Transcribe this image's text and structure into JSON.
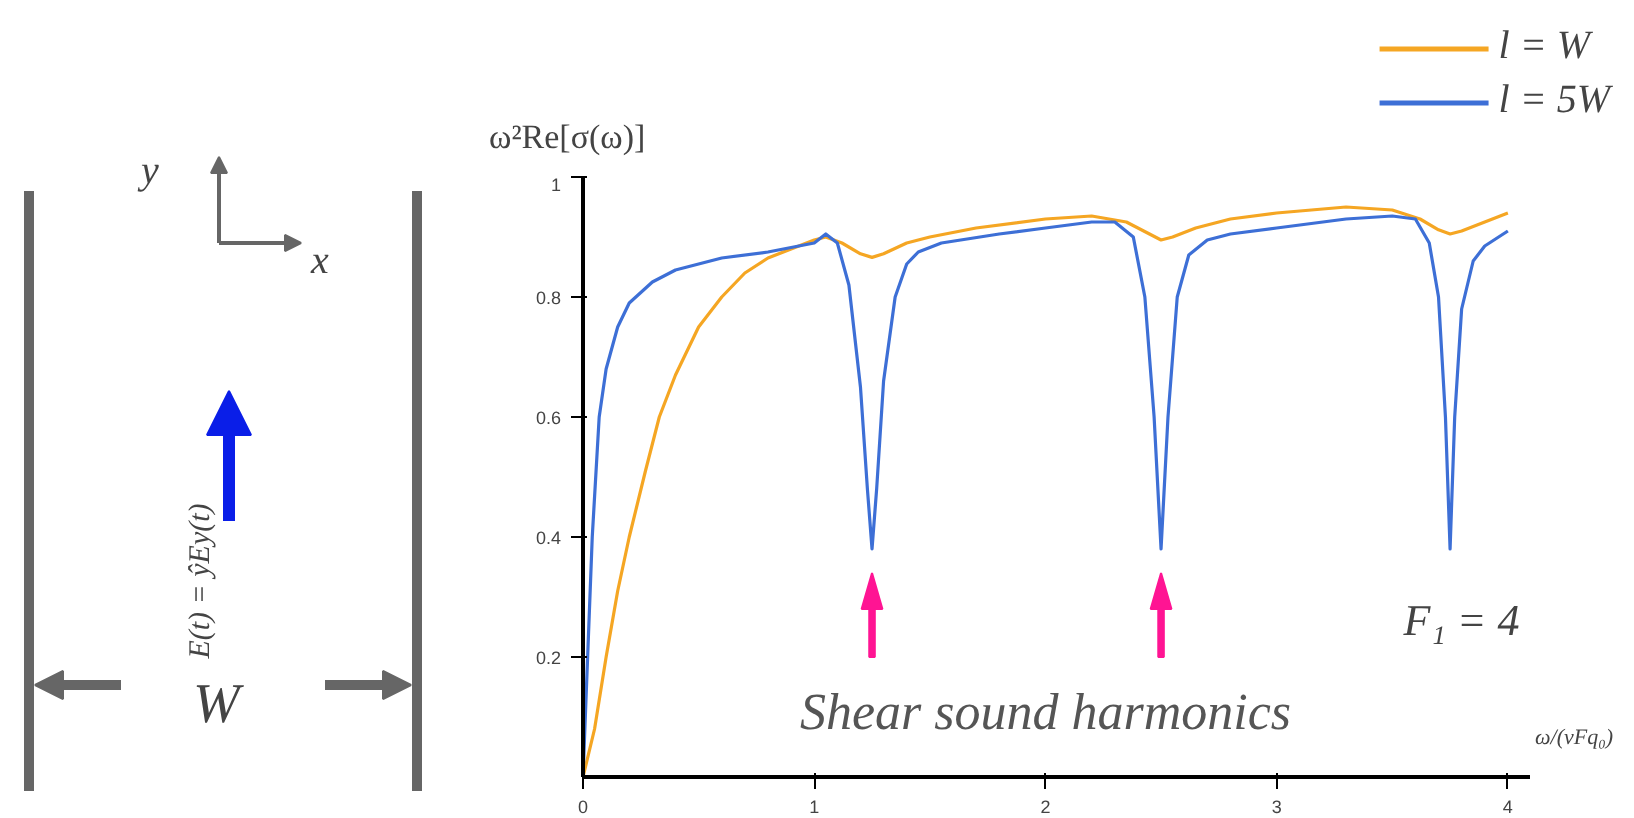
{
  "chart_data": {
    "type": "line",
    "xlabel": "ω/(vFq₀)",
    "ylabel": "ω²Re[σ(ω)]",
    "xlim": [
      0,
      4.1
    ],
    "ylim": [
      0,
      1.0
    ],
    "xticks": [
      0,
      1,
      2,
      3,
      4
    ],
    "yticks": [
      0.2,
      0.4,
      0.6,
      0.8,
      1.0
    ],
    "grid": false,
    "legend": "top right",
    "line_style": "solid",
    "series": [
      {
        "name": "l = W",
        "color": "#f5a623",
        "x": [
          0,
          0.05,
          0.1,
          0.15,
          0.2,
          0.27,
          0.33,
          0.4,
          0.5,
          0.6,
          0.7,
          0.8,
          0.9,
          1.0,
          1.05,
          1.12,
          1.2,
          1.25,
          1.3,
          1.4,
          1.5,
          1.7,
          2.0,
          2.2,
          2.35,
          2.45,
          2.5,
          2.55,
          2.65,
          2.8,
          3.0,
          3.3,
          3.5,
          3.62,
          3.7,
          3.75,
          3.8,
          3.9,
          4.0
        ],
        "values": [
          0,
          0.08,
          0.2,
          0.31,
          0.4,
          0.51,
          0.6,
          0.67,
          0.75,
          0.8,
          0.84,
          0.865,
          0.88,
          0.895,
          0.9,
          0.89,
          0.872,
          0.866,
          0.872,
          0.89,
          0.9,
          0.915,
          0.93,
          0.935,
          0.925,
          0.905,
          0.895,
          0.9,
          0.915,
          0.93,
          0.94,
          0.95,
          0.945,
          0.93,
          0.912,
          0.905,
          0.91,
          0.925,
          0.94
        ]
      },
      {
        "name": "l = 5W",
        "color": "#3d6fd6",
        "x": [
          0,
          0.02,
          0.04,
          0.07,
          0.1,
          0.15,
          0.2,
          0.3,
          0.4,
          0.6,
          0.8,
          1.0,
          1.05,
          1.1,
          1.15,
          1.2,
          1.23,
          1.25,
          1.27,
          1.3,
          1.35,
          1.4,
          1.45,
          1.55,
          1.8,
          2.0,
          2.2,
          2.3,
          2.38,
          2.43,
          2.47,
          2.5,
          2.53,
          2.57,
          2.62,
          2.7,
          2.8,
          3.0,
          3.3,
          3.5,
          3.6,
          3.66,
          3.7,
          3.73,
          3.75,
          3.77,
          3.8,
          3.85,
          3.9,
          4.0
        ],
        "values": [
          0,
          0.2,
          0.4,
          0.6,
          0.68,
          0.75,
          0.79,
          0.825,
          0.845,
          0.865,
          0.875,
          0.89,
          0.905,
          0.89,
          0.82,
          0.65,
          0.48,
          0.38,
          0.48,
          0.66,
          0.8,
          0.855,
          0.875,
          0.89,
          0.905,
          0.915,
          0.925,
          0.925,
          0.9,
          0.8,
          0.6,
          0.38,
          0.6,
          0.8,
          0.87,
          0.895,
          0.905,
          0.915,
          0.93,
          0.935,
          0.93,
          0.89,
          0.8,
          0.6,
          0.38,
          0.6,
          0.78,
          0.86,
          0.885,
          0.91
        ]
      }
    ],
    "annotations": [
      "Shear sound harmonics",
      "F₁ = 4",
      "y",
      "x",
      "E(t) = ŷEy(t)",
      "W"
    ]
  }
}
